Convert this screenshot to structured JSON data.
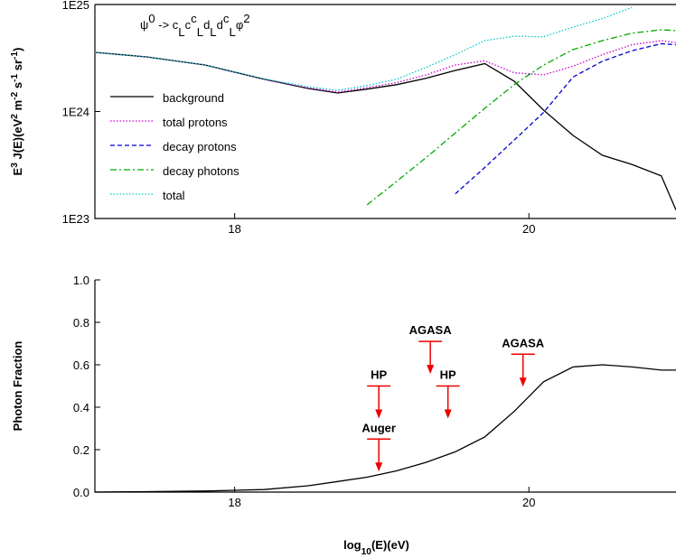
{
  "chart_data": [
    {
      "type": "line",
      "title": [
        {
          "text": "ψ"
        },
        {
          "text": "0",
          "shift": "sup"
        },
        {
          "text": " -> c"
        },
        {
          "text": "L",
          "shift": "sub"
        },
        {
          "text": "c"
        },
        {
          "text": "c",
          "shift": "sup"
        },
        {
          "text": "L",
          "shift": "sub"
        },
        {
          "text": "d"
        },
        {
          "text": "L",
          "shift": "sub"
        },
        {
          "text": "d"
        },
        {
          "text": "c",
          "shift": "sup"
        },
        {
          "text": "L",
          "shift": "sub"
        },
        {
          "text": "φ"
        },
        {
          "text": "2",
          "shift": "sup"
        }
      ],
      "ylabel": [
        {
          "text": "E"
        },
        {
          "text": "3",
          "shift": "sup"
        },
        {
          "text": " J(E)(eV"
        },
        {
          "text": "2",
          "shift": "sup"
        },
        {
          "text": " m"
        },
        {
          "text": "-2",
          "shift": "sup"
        },
        {
          "text": " s"
        },
        {
          "text": "-1",
          "shift": "sup"
        },
        {
          "text": " sr"
        },
        {
          "text": "-1",
          "shift": "sup"
        },
        {
          "text": ")"
        }
      ],
      "x": [
        17.05,
        17.4,
        17.8,
        18.2,
        18.5,
        18.7,
        18.9,
        19.1,
        19.3,
        19.5,
        19.7,
        19.9,
        20.1,
        20.3,
        20.5,
        20.7,
        20.9,
        21.0
      ],
      "xlim": [
        17.05,
        21.0
      ],
      "xticks": [
        18,
        20
      ],
      "ylim": [
        1e+23,
        1e+25
      ],
      "yscale": "log",
      "yticks": [
        {
          "value": 1e+23,
          "label": "1E23"
        },
        {
          "value": 1e+24,
          "label": "1E24"
        },
        {
          "value": 1e+25,
          "label": "1E25"
        }
      ],
      "legend": "center left",
      "series": [
        {
          "name": "background",
          "color": "#000000",
          "style": "solid",
          "values": [
            3.57e+24,
            3.24e+24,
            2.72e+24,
            2e+24,
            1.64e+24,
            1.49e+24,
            1.62e+24,
            1.78e+24,
            2.04e+24,
            2.42e+24,
            2.8e+24,
            1.92e+24,
            1.03e+24,
            5.97e+23,
            3.9e+23,
            3.2e+23,
            2.5e+23,
            1.2e+23
          ]
        },
        {
          "name": "total protons",
          "color": "#cc00cc",
          "style": "dotted",
          "values": [
            3.57e+24,
            3.24e+24,
            2.72e+24,
            2e+24,
            1.66e+24,
            1.52e+24,
            1.67e+24,
            1.86e+24,
            2.2e+24,
            2.72e+24,
            2.98e+24,
            2.3e+24,
            2.2e+24,
            2.65e+24,
            3.4e+24,
            4.2e+24,
            4.6e+24,
            4.4e+24
          ]
        },
        {
          "name": "decay protons",
          "color": "#0000cc",
          "style": "dashed",
          "values": [
            null,
            null,
            null,
            null,
            null,
            null,
            null,
            null,
            null,
            1.7e+23,
            3e+23,
            5.4e+23,
            9.8e+23,
            2.1e+24,
            2.95e+24,
            3.7e+24,
            4.3e+24,
            4.2e+24
          ]
        },
        {
          "name": "decay photons",
          "color": "#00aa00",
          "style": "dashdot",
          "values": [
            null,
            null,
            null,
            null,
            null,
            null,
            1.34e+23,
            2.22e+23,
            3.7e+23,
            6.3e+23,
            1.07e+24,
            1.78e+24,
            2.72e+24,
            3.79e+24,
            4.6e+24,
            5.4e+24,
            5.8e+24,
            5.7e+24
          ]
        },
        {
          "name": "total",
          "color": "#00cccc",
          "style": "dotted",
          "values": [
            3.57e+24,
            3.24e+24,
            2.72e+24,
            2.02e+24,
            1.7e+24,
            1.58e+24,
            1.75e+24,
            2e+24,
            2.58e+24,
            3.4e+24,
            4.6e+24,
            5.06e+24,
            5e+24,
            6.15e+24,
            7.4e+24,
            9.4e+24,
            null,
            null
          ]
        }
      ]
    },
    {
      "type": "line",
      "ylabel": [
        {
          "text": "Photon Fraction"
        }
      ],
      "xlabel": [
        {
          "text": "log"
        },
        {
          "text": "10",
          "shift": "sub"
        },
        {
          "text": "(E)(eV)"
        }
      ],
      "x": [
        17.05,
        17.4,
        17.8,
        18.2,
        18.5,
        18.7,
        18.9,
        19.1,
        19.3,
        19.5,
        19.7,
        19.9,
        20.1,
        20.3,
        20.5,
        20.7,
        20.9,
        21.0
      ],
      "xlim": [
        17.05,
        21.0
      ],
      "xticks": [
        18,
        20
      ],
      "ylim": [
        0,
        1
      ],
      "yticks": [
        {
          "value": 0,
          "label": "0.0"
        },
        0.2,
        0.4,
        0.6,
        0.8,
        {
          "value": 1,
          "label": "1.0"
        }
      ],
      "series": [
        {
          "color": "#000000",
          "style": "solid",
          "values": [
            0,
            0.002,
            0.005,
            0.012,
            0.03,
            0.05,
            0.07,
            0.1,
            0.14,
            0.19,
            0.26,
            0.38,
            0.52,
            0.59,
            0.6,
            0.59,
            0.575,
            0.575
          ]
        }
      ],
      "limits_color": "#ee0000",
      "limits": [
        {
          "label": "HP",
          "x": 18.98,
          "y": 0.5
        },
        {
          "label": "Auger",
          "x": 18.98,
          "y": 0.25
        },
        {
          "label": "AGASA",
          "x": 19.33,
          "y": 0.71
        },
        {
          "label": "HP",
          "x": 19.45,
          "y": 0.5
        },
        {
          "label": "AGASA",
          "x": 19.96,
          "y": 0.65
        }
      ]
    }
  ]
}
